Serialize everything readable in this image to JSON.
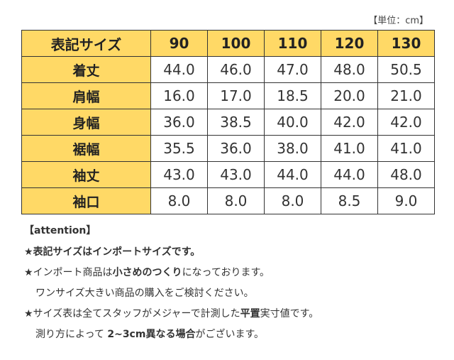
{
  "unit_note": "【単位：cm】",
  "table": {
    "header_label": "表記サイズ",
    "sizes": [
      "90",
      "100",
      "110",
      "120",
      "130"
    ],
    "rows": [
      {
        "label": "着丈",
        "values": [
          "44.0",
          "46.0",
          "47.0",
          "48.0",
          "50.5"
        ]
      },
      {
        "label": "肩幅",
        "values": [
          "16.0",
          "17.0",
          "18.5",
          "20.0",
          "21.0"
        ]
      },
      {
        "label": "身幅",
        "values": [
          "36.0",
          "38.5",
          "40.0",
          "42.0",
          "42.0"
        ]
      },
      {
        "label": "裾幅",
        "values": [
          "35.5",
          "36.0",
          "38.0",
          "41.0",
          "41.0"
        ]
      },
      {
        "label": "袖丈",
        "values": [
          "43.0",
          "43.0",
          "44.0",
          "44.0",
          "48.0"
        ]
      },
      {
        "label": "袖口",
        "values": [
          "8.0",
          "8.0",
          "8.0",
          "8.5",
          "9.0"
        ]
      }
    ]
  },
  "notes": {
    "attention": "【attention】",
    "line1": "★表記サイズはインポートサイズです。",
    "line2_pre": "★インポート商品は",
    "line2_bold": "小さめのつくり",
    "line2_post": "になっております。",
    "line3": "ワンサイズ大きい商品の購入をご検討ください。",
    "line4_pre": "★サイズ表は全てスタッフがメジャーで計測した",
    "line4_bold": "平置",
    "line4_post": "実寸値です。",
    "line5_pre": "測り方によって ",
    "line5_bold": "2~3cm異なる場合",
    "line5_post": "がございます。"
  }
}
